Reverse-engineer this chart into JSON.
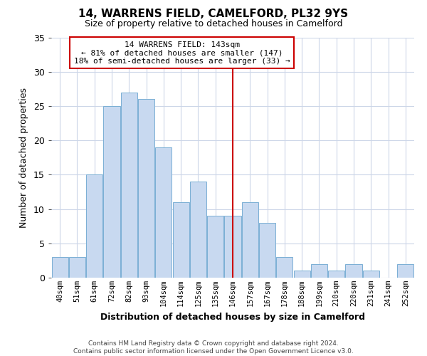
{
  "title": "14, WARRENS FIELD, CAMELFORD, PL32 9YS",
  "subtitle": "Size of property relative to detached houses in Camelford",
  "xlabel": "Distribution of detached houses by size in Camelford",
  "ylabel": "Number of detached properties",
  "bar_labels": [
    "40sqm",
    "51sqm",
    "61sqm",
    "72sqm",
    "82sqm",
    "93sqm",
    "104sqm",
    "114sqm",
    "125sqm",
    "135sqm",
    "146sqm",
    "157sqm",
    "167sqm",
    "178sqm",
    "188sqm",
    "199sqm",
    "210sqm",
    "220sqm",
    "231sqm",
    "241sqm",
    "252sqm"
  ],
  "bar_values": [
    3,
    3,
    15,
    25,
    27,
    26,
    19,
    11,
    14,
    9,
    9,
    11,
    8,
    3,
    1,
    2,
    1,
    2,
    1,
    0,
    2
  ],
  "bar_color": "#c8d9f0",
  "bar_edge_color": "#7aafd4",
  "vline_x": 10.0,
  "vline_color": "#cc0000",
  "ylim": [
    0,
    35
  ],
  "yticks": [
    0,
    5,
    10,
    15,
    20,
    25,
    30,
    35
  ],
  "annotation_title": "14 WARRENS FIELD: 143sqm",
  "annotation_line1": "← 81% of detached houses are smaller (147)",
  "annotation_line2": "18% of semi-detached houses are larger (33) →",
  "annotation_box_color": "#ffffff",
  "annotation_box_edge": "#cc0000",
  "footer_line1": "Contains HM Land Registry data © Crown copyright and database right 2024.",
  "footer_line2": "Contains public sector information licensed under the Open Government Licence v3.0.",
  "background_color": "#ffffff",
  "grid_color": "#ccd6e8"
}
